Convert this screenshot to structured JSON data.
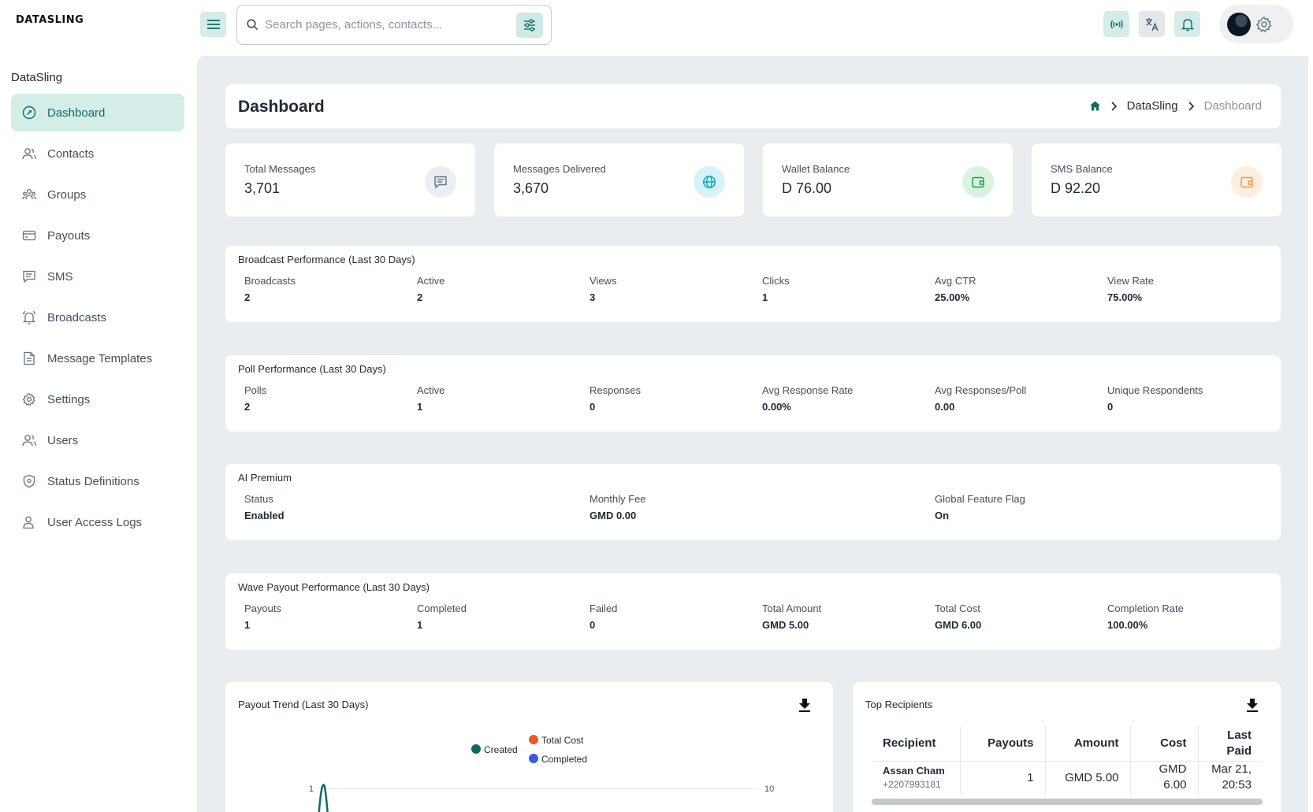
{
  "app": {
    "logo": "DATASLING"
  },
  "search": {
    "placeholder": "Search pages, actions, contacts..."
  },
  "sidebar": {
    "heading": "DataSling",
    "items": [
      {
        "label": "Dashboard",
        "icon": "dashboard-icon",
        "active": true
      },
      {
        "label": "Contacts",
        "icon": "contacts-icon"
      },
      {
        "label": "Groups",
        "icon": "groups-icon"
      },
      {
        "label": "Payouts",
        "icon": "payouts-icon"
      },
      {
        "label": "SMS",
        "icon": "sms-icon"
      },
      {
        "label": "Broadcasts",
        "icon": "broadcasts-icon"
      },
      {
        "label": "Message Templates",
        "icon": "template-icon"
      },
      {
        "label": "Settings",
        "icon": "settings-icon"
      },
      {
        "label": "Users",
        "icon": "users-icon"
      },
      {
        "label": "Status Definitions",
        "icon": "shield-icon"
      },
      {
        "label": "User Access Logs",
        "icon": "user-log-icon"
      }
    ]
  },
  "header": {
    "title": "Dashboard",
    "breadcrumb": {
      "parent": "DataSling",
      "current": "Dashboard"
    }
  },
  "kpis": [
    {
      "label": "Total Messages",
      "value": "3,701",
      "icon": "message-icon",
      "color": "#637381",
      "bg": "#eceff1"
    },
    {
      "label": "Messages Delivered",
      "value": "3,670",
      "icon": "globe-icon",
      "color": "#00a8c6",
      "bg": "#d7f3f8"
    },
    {
      "label": "Wallet Balance",
      "value": "D 76.00",
      "icon": "wallet-icon",
      "color": "#1aa34a",
      "bg": "#d9f3e0"
    },
    {
      "label": "SMS Balance",
      "value": "D 92.20",
      "icon": "wallet-icon",
      "color": "#f2994a",
      "bg": "#fdeede"
    }
  ],
  "broadcast": {
    "title": "Broadcast Performance (Last 30 Days)",
    "stats": [
      {
        "label": "Broadcasts",
        "value": "2"
      },
      {
        "label": "Active",
        "value": "2"
      },
      {
        "label": "Views",
        "value": "3"
      },
      {
        "label": "Clicks",
        "value": "1"
      },
      {
        "label": "Avg CTR",
        "value": "25.00%"
      },
      {
        "label": "View Rate",
        "value": "75.00%"
      }
    ]
  },
  "poll": {
    "title": "Poll Performance (Last 30 Days)",
    "stats": [
      {
        "label": "Polls",
        "value": "2"
      },
      {
        "label": "Active",
        "value": "1"
      },
      {
        "label": "Responses",
        "value": "0"
      },
      {
        "label": "Avg Response Rate",
        "value": "0.00%"
      },
      {
        "label": "Avg Responses/Poll",
        "value": "0.00"
      },
      {
        "label": "Unique Respondents",
        "value": "0"
      }
    ]
  },
  "ai": {
    "title": "AI Premium",
    "stats": [
      {
        "label": "Status",
        "value": "Enabled"
      },
      {
        "label": "Monthly Fee",
        "value": "GMD 0.00"
      },
      {
        "label": "Global Feature Flag",
        "value": "On"
      }
    ]
  },
  "wave": {
    "title": "Wave Payout Performance (Last 30 Days)",
    "stats": [
      {
        "label": "Payouts",
        "value": "1"
      },
      {
        "label": "Completed",
        "value": "1"
      },
      {
        "label": "Failed",
        "value": "0"
      },
      {
        "label": "Total Amount",
        "value": "GMD 5.00"
      },
      {
        "label": "Total Cost",
        "value": "GMD 6.00"
      },
      {
        "label": "Completion Rate",
        "value": "100.00%"
      }
    ]
  },
  "payout_trend": {
    "title": "Payout Trend (Last 30 Days)",
    "legend": [
      {
        "name": "Created",
        "color": "#0f6b62"
      },
      {
        "name": "Total Cost",
        "color": "#ef5a1f"
      },
      {
        "name": "Completed",
        "color": "#3b5bdb"
      }
    ],
    "left_tick": "1",
    "right_tick": "10"
  },
  "top_recipients": {
    "title": "Top Recipients",
    "columns": [
      "Recipient",
      "Payouts",
      "Amount",
      "Cost",
      "Last Paid"
    ],
    "rows": [
      {
        "name": "Assan Cham",
        "phone": "+2207993181",
        "payouts": "1",
        "amount": "GMD 5.00",
        "cost": "GMD 6.00",
        "last_paid": "Mar 21, 20:53"
      }
    ]
  }
}
